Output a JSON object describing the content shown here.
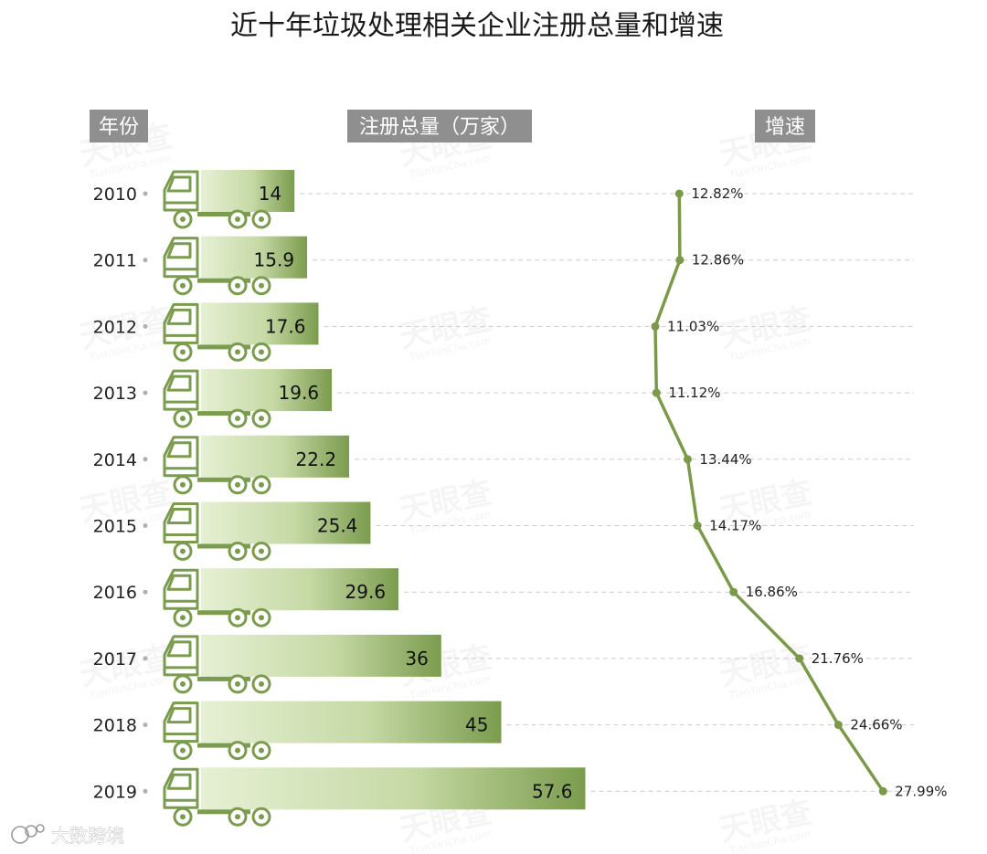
{
  "chart_data": {
    "type": "bar",
    "title": "近十年垃圾处理相关企业注册总量和增速",
    "column_headers": {
      "year": "年份",
      "total": "注册总量（万家）",
      "growth": "增速"
    },
    "categories": [
      "2010",
      "2011",
      "2012",
      "2013",
      "2014",
      "2015",
      "2016",
      "2017",
      "2018",
      "2019"
    ],
    "series": [
      {
        "name": "注册总量（万家）",
        "type": "bar",
        "values": [
          14,
          15.9,
          17.6,
          19.6,
          22.2,
          25.4,
          29.6,
          36,
          45,
          57.6
        ],
        "labels": [
          "14",
          "15.9",
          "17.6",
          "19.6",
          "22.2",
          "25.4",
          "29.6",
          "36",
          "45",
          "57.6"
        ]
      },
      {
        "name": "增速",
        "type": "line",
        "unit": "%",
        "values": [
          12.82,
          12.86,
          11.03,
          11.12,
          13.44,
          14.17,
          16.86,
          21.76,
          24.66,
          27.99
        ],
        "labels": [
          "12.82%",
          "12.86%",
          "11.03%",
          "11.12%",
          "13.44%",
          "14.17%",
          "16.86%",
          "21.76%",
          "24.66%",
          "27.99%"
        ]
      }
    ],
    "grid": false,
    "bar_style": "truck",
    "colors": {
      "bar_dark": "#7b9c4e",
      "bar_light": "#e6f0d4",
      "line": "#7a9a4a",
      "header_bg": "#8f8f8f",
      "guide": "#cccccc"
    }
  },
  "watermark": {
    "text": "天眼查",
    "sub": "TianYanCha.com"
  },
  "footer": {
    "text": "大数跨境"
  }
}
